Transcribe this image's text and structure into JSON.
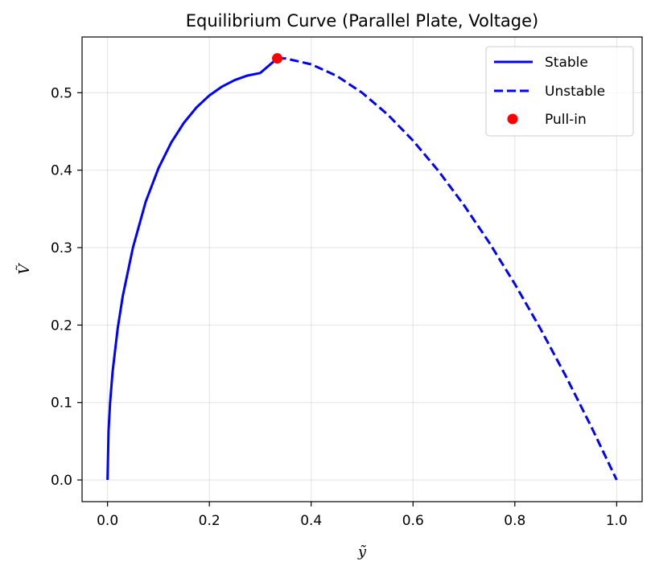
{
  "chart_data": {
    "type": "line",
    "title": "Equilibrium Curve (Parallel Plate, Voltage)",
    "xlabel": "ỹ",
    "ylabel": "Ṽ",
    "xlim": [
      -0.05,
      1.05
    ],
    "ylim": [
      -0.028,
      0.572
    ],
    "xticks": [
      0.0,
      0.2,
      0.4,
      0.6,
      0.8,
      1.0
    ],
    "xtick_labels": [
      "0.0",
      "0.2",
      "0.4",
      "0.6",
      "0.8",
      "1.0"
    ],
    "yticks": [
      0.0,
      0.1,
      0.2,
      0.3,
      0.4,
      0.5
    ],
    "ytick_labels": [
      "0.0",
      "0.1",
      "0.2",
      "0.3",
      "0.4",
      "0.5"
    ],
    "grid": true,
    "legend_position": "top-right",
    "series": [
      {
        "name": "Stable",
        "style": "solid",
        "color": "#0000ff",
        "x": [
          0.0,
          0.002,
          0.005,
          0.01,
          0.02,
          0.03,
          0.05,
          0.075,
          0.1,
          0.125,
          0.15,
          0.175,
          0.2,
          0.225,
          0.25,
          0.275,
          0.3,
          0.3333
        ],
        "y": [
          0.0,
          0.0632,
          0.0997,
          0.1401,
          0.196,
          0.2377,
          0.3003,
          0.3593,
          0.4025,
          0.4355,
          0.4612,
          0.4812,
          0.4965,
          0.508,
          0.5164,
          0.5222,
          0.5255,
          0.5443
        ]
      },
      {
        "name": "Unstable",
        "style": "dashed",
        "color": "#0000ff",
        "x": [
          0.3333,
          0.35,
          0.4,
          0.45,
          0.5,
          0.55,
          0.6,
          0.65,
          0.7,
          0.75,
          0.8,
          0.85,
          0.9,
          0.95,
          1.0
        ],
        "y": [
          0.5443,
          0.5442,
          0.5367,
          0.5218,
          0.5,
          0.472,
          0.4382,
          0.399,
          0.3549,
          0.3062,
          0.253,
          0.1956,
          0.1342,
          0.0689,
          0.0
        ]
      },
      {
        "name": "Pull-in",
        "style": "marker",
        "color": "#ff0000",
        "x": [
          0.3333
        ],
        "y": [
          0.5443
        ]
      }
    ]
  }
}
